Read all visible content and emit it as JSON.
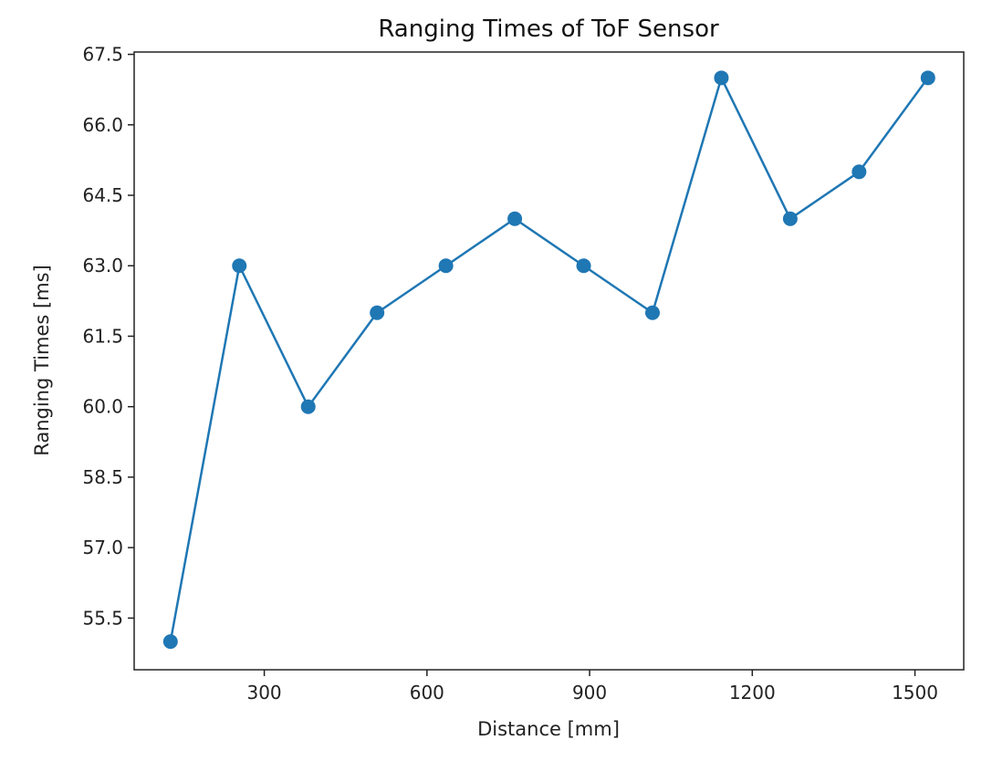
{
  "chart_data": {
    "type": "line",
    "title": "Ranging Times of ToF Sensor",
    "xlabel": "Distance [mm]",
    "ylabel": "Ranging Times [ms]",
    "xlim": [
      60,
      1590
    ],
    "ylim": [
      54.4,
      67.55
    ],
    "xticks": [
      300,
      600,
      900,
      1200,
      1500
    ],
    "xtick_labels": [
      "300",
      "600",
      "900",
      "1200",
      "1500"
    ],
    "yticks": [
      55.5,
      57.0,
      58.5,
      60.0,
      61.5,
      63.0,
      64.5,
      66.0,
      67.5
    ],
    "ytick_labels": [
      "55.5",
      "57.0",
      "58.5",
      "60.0",
      "61.5",
      "63.0",
      "64.5",
      "66.0",
      "67.5"
    ],
    "grid": false,
    "legend": "none",
    "series": [
      {
        "color": "#1f77b4",
        "marker": "circle",
        "x": [
          127,
          254,
          381,
          508,
          635,
          762,
          889,
          1016,
          1143,
          1270,
          1397,
          1524
        ],
        "y": [
          55,
          63,
          60,
          62,
          63,
          64,
          63,
          62,
          67,
          64,
          65,
          67
        ]
      }
    ]
  }
}
